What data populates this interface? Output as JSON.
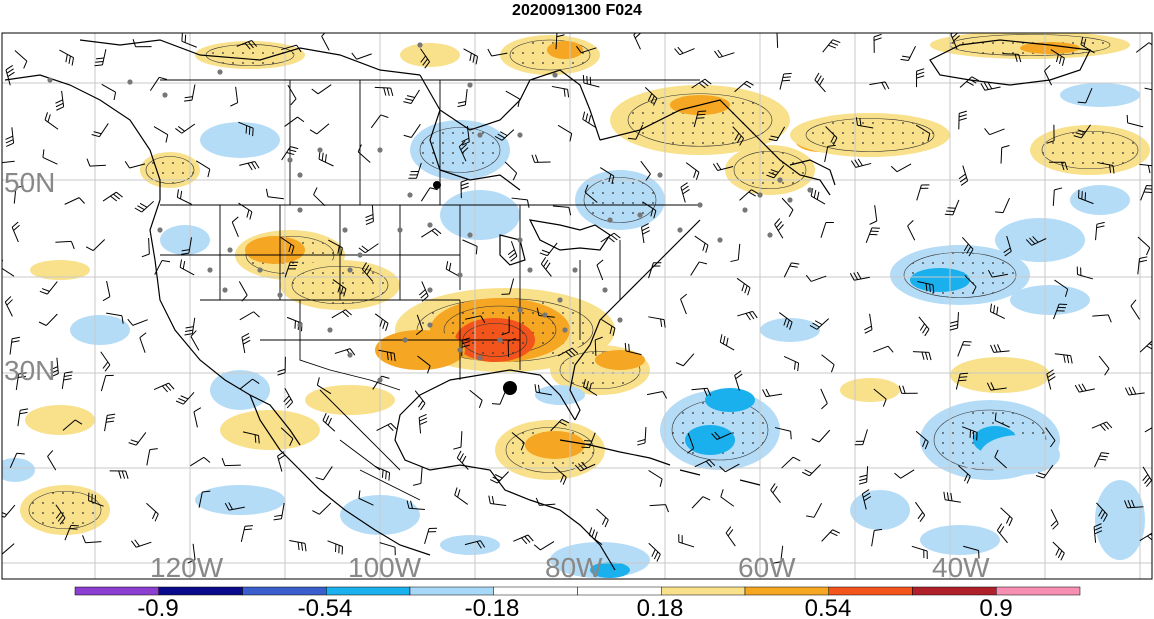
{
  "title": "2020091300 F024",
  "latitude_labels": [
    "50N",
    "30N"
  ],
  "longitude_labels": [
    "120W",
    "100W",
    "80W",
    "60W",
    "40W"
  ],
  "colorbar": {
    "tick_labels": [
      "-0.9",
      "-0.54",
      "-0.18",
      "0.18",
      "0.54",
      "0.9"
    ],
    "colors": [
      "#8a3fd1",
      "#0a0a8c",
      "#3a5fcd",
      "#1ab0ee",
      "#a8d8f8",
      "#ffffff",
      "#ffffff",
      "#f9e08a",
      "#f5a623",
      "#f2541b",
      "#b0202a",
      "#f78fb3"
    ]
  },
  "field_colors": {
    "light_blue": "#b5dcf7",
    "mid_blue": "#1ab0ee",
    "light_yellow": "#f9e08a",
    "orange": "#f5a623",
    "red_orange": "#f2541b"
  },
  "marker": {
    "label_color": "#000000"
  }
}
